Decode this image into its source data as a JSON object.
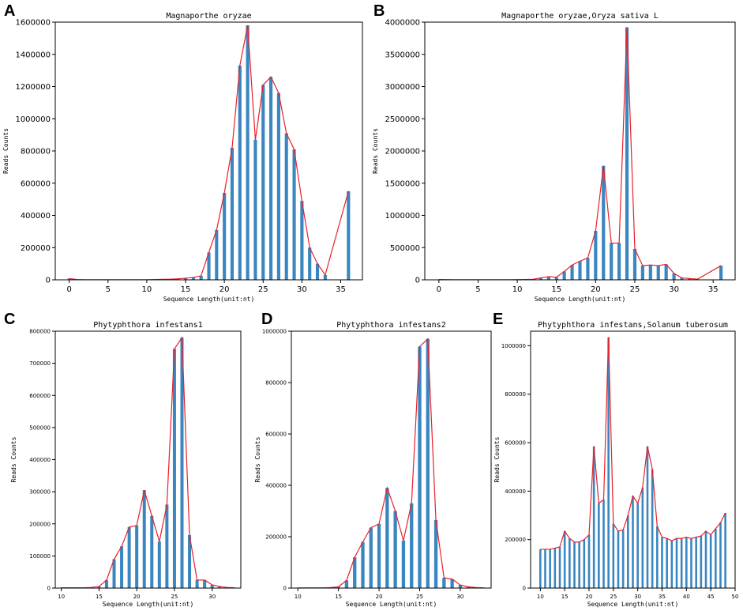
{
  "colors": {
    "bar": "#3a86c0",
    "line": "#e8202a",
    "axis": "#000000"
  },
  "chart_data": [
    {
      "id": "A",
      "type": "bar",
      "letter": "A",
      "title": "Magnaporthe oryzae",
      "xlabel": "Sequence Length(unit:nt)",
      "ylabel": "Reads Counts",
      "xlim": [
        -1.8,
        37.8
      ],
      "ylim": [
        0,
        1600000
      ],
      "xticks": [
        0,
        5,
        10,
        15,
        20,
        25,
        30,
        35
      ],
      "yticks": [
        0,
        200000,
        400000,
        600000,
        800000,
        1000000,
        1200000,
        1400000,
        1600000
      ],
      "x": [
        0,
        1,
        2,
        3,
        4,
        5,
        6,
        7,
        8,
        9,
        10,
        11,
        12,
        13,
        14,
        15,
        16,
        17,
        18,
        19,
        20,
        21,
        22,
        23,
        24,
        25,
        26,
        27,
        28,
        29,
        30,
        31,
        32,
        33,
        36
      ],
      "values": [
        8000,
        2000,
        1000,
        1000,
        1000,
        1000,
        1000,
        1000,
        1000,
        1000,
        1000,
        2000,
        3000,
        4000,
        6000,
        10000,
        15000,
        25000,
        170000,
        310000,
        540000,
        820000,
        1330000,
        1580000,
        870000,
        1210000,
        1260000,
        1160000,
        910000,
        810000,
        490000,
        200000,
        100000,
        30000,
        550000
      ]
    },
    {
      "id": "B",
      "type": "bar",
      "letter": "B",
      "title": "Magnaporthe oryzae,Oryza sativa L",
      "xlabel": "Sequence Length(unit:nt)",
      "ylabel": "Reads Counts",
      "xlim": [
        -1.8,
        37.8
      ],
      "ylim": [
        0,
        4000000
      ],
      "xticks": [
        0,
        5,
        10,
        15,
        20,
        25,
        30,
        35
      ],
      "yticks": [
        0,
        500000,
        1000000,
        1500000,
        2000000,
        2500000,
        3000000,
        3500000,
        4000000
      ],
      "x": [
        0,
        1,
        2,
        3,
        4,
        5,
        6,
        7,
        8,
        9,
        10,
        11,
        12,
        13,
        14,
        15,
        16,
        17,
        18,
        19,
        20,
        21,
        22,
        23,
        24,
        25,
        26,
        27,
        28,
        29,
        30,
        31,
        32,
        33,
        36
      ],
      "values": [
        5000,
        3000,
        2000,
        2000,
        2000,
        2000,
        2000,
        2000,
        2000,
        2000,
        3000,
        5000,
        8000,
        30000,
        50000,
        40000,
        130000,
        230000,
        290000,
        340000,
        760000,
        1770000,
        570000,
        570000,
        3920000,
        480000,
        220000,
        230000,
        220000,
        240000,
        100000,
        30000,
        20000,
        10000,
        220000
      ]
    },
    {
      "id": "C",
      "type": "bar",
      "letter": "C",
      "title": "Phytyphthora infestans1",
      "xlabel": "Sequence Length(unit:nt)",
      "ylabel": "Reads Counts",
      "xlim": [
        9.2,
        33.8
      ],
      "ylim": [
        0,
        800000
      ],
      "xticks": [
        10,
        15,
        20,
        25,
        30
      ],
      "yticks": [
        0,
        100000,
        200000,
        300000,
        400000,
        500000,
        600000,
        700000,
        800000
      ],
      "x": [
        10,
        11,
        12,
        13,
        14,
        15,
        16,
        17,
        18,
        19,
        20,
        21,
        22,
        23,
        24,
        25,
        26,
        27,
        28,
        29,
        30,
        31,
        32,
        33
      ],
      "values": [
        1000,
        1000,
        1000,
        1000,
        2000,
        5000,
        25000,
        90000,
        130000,
        190000,
        195000,
        305000,
        225000,
        145000,
        260000,
        745000,
        780000,
        165000,
        25000,
        25000,
        10000,
        5000,
        2000,
        1000
      ]
    },
    {
      "id": "D",
      "type": "bar",
      "letter": "D",
      "title": "Phytyphthora infestans2",
      "xlabel": "Sequence Length(unit:nt)",
      "ylabel": "Reads Counts",
      "xlim": [
        9.2,
        33.8
      ],
      "ylim": [
        0,
        1000000
      ],
      "xticks": [
        10,
        15,
        20,
        25,
        30
      ],
      "yticks": [
        0,
        200000,
        400000,
        600000,
        800000,
        1000000
      ],
      "x": [
        10,
        11,
        12,
        13,
        14,
        15,
        16,
        17,
        18,
        19,
        20,
        21,
        22,
        23,
        24,
        25,
        26,
        27,
        28,
        29,
        30,
        31,
        32,
        33
      ],
      "values": [
        1000,
        1000,
        1000,
        1000,
        2000,
        5000,
        30000,
        120000,
        180000,
        235000,
        250000,
        390000,
        300000,
        185000,
        330000,
        940000,
        970000,
        265000,
        40000,
        35000,
        12000,
        5000,
        2000,
        1000
      ]
    },
    {
      "id": "E",
      "type": "bar",
      "letter": "E",
      "title": "Phytyphthora infestans,Solanum tuberosum",
      "xlabel": "Sequence Length(unit:nt)",
      "ylabel": "Reads Counts",
      "xlim": [
        8.0,
        50.0
      ],
      "ylim": [
        0,
        1060000
      ],
      "xticks": [
        10,
        15,
        20,
        25,
        30,
        35,
        40,
        45,
        50
      ],
      "yticks": [
        0,
        200000,
        400000,
        600000,
        800000,
        1000000
      ],
      "x": [
        10,
        11,
        12,
        13,
        14,
        15,
        16,
        17,
        18,
        19,
        20,
        21,
        22,
        23,
        24,
        25,
        26,
        27,
        28,
        29,
        30,
        31,
        32,
        33,
        34,
        35,
        36,
        37,
        38,
        39,
        40,
        41,
        42,
        43,
        44,
        45,
        46,
        47,
        48
      ],
      "values": [
        160000,
        160000,
        160000,
        165000,
        170000,
        235000,
        205000,
        190000,
        190000,
        200000,
        220000,
        585000,
        350000,
        365000,
        1035000,
        265000,
        235000,
        240000,
        300000,
        380000,
        350000,
        415000,
        585000,
        490000,
        255000,
        210000,
        205000,
        195000,
        205000,
        205000,
        210000,
        205000,
        210000,
        215000,
        235000,
        220000,
        245000,
        270000,
        310000
      ]
    }
  ]
}
